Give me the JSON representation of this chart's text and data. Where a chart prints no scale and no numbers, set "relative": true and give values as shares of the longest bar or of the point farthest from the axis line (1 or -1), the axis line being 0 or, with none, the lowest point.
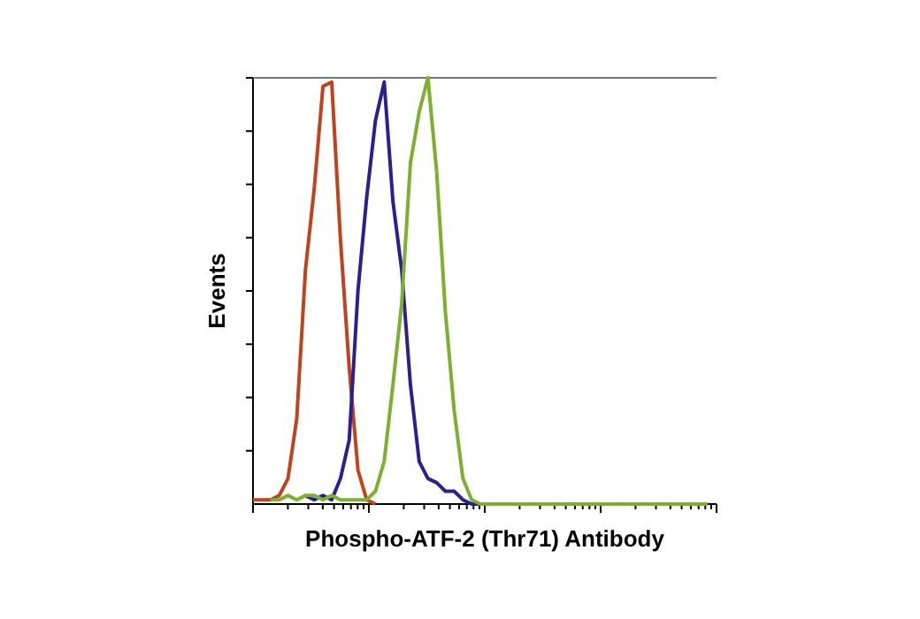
{
  "chart_data": {
    "type": "line",
    "relative": true,
    "xlabel": "Phospho-ATF-2 (Thr71) Antibody",
    "ylabel": "Events",
    "categories": [
      null,
      null,
      null,
      null,
      null,
      null,
      null,
      null,
      null,
      null,
      null,
      null,
      null,
      null,
      null,
      null,
      null,
      null,
      null,
      null,
      null,
      null,
      null,
      null,
      null,
      null,
      null,
      null,
      null,
      null,
      null,
      null,
      null,
      null,
      null,
      null,
      null,
      null,
      null,
      null,
      null,
      null,
      null,
      null,
      null,
      null,
      null,
      null,
      null,
      null,
      null,
      null,
      null
    ],
    "series": [
      {
        "color": "#c0431c",
        "values": [
          0.01,
          0.01,
          0.01,
          0.02,
          0.06,
          0.2,
          0.55,
          0.74,
          0.98,
          0.99,
          0.62,
          0.32,
          0.08,
          0.01,
          0,
          null,
          null,
          null,
          null,
          null,
          null,
          null,
          null,
          null,
          null,
          null,
          null,
          null,
          null,
          null,
          null,
          null,
          null,
          null,
          null,
          null,
          null,
          null,
          null,
          null,
          null,
          null,
          null,
          null,
          null,
          null,
          null,
          null,
          null,
          null,
          null,
          null,
          null
        ]
      },
      {
        "color": "#2b2090",
        "values": [
          null,
          null,
          null,
          null,
          null,
          null,
          0.02,
          0.01,
          0.02,
          0.01,
          0.06,
          0.15,
          0.5,
          0.72,
          0.9,
          0.99,
          0.71,
          0.55,
          0.28,
          0.1,
          0.06,
          0.05,
          0.03,
          0.03,
          0.01,
          0,
          0,
          null,
          null,
          null,
          null,
          null,
          null,
          null,
          null,
          null,
          null,
          null,
          null,
          null,
          null,
          null,
          null,
          null,
          null,
          null,
          null,
          null,
          null,
          null,
          null,
          null,
          null
        ]
      },
      {
        "color": "#7cb02e",
        "values": [
          null,
          null,
          0.01,
          0.01,
          0.02,
          0.01,
          0.02,
          0.02,
          0.01,
          0.02,
          0.01,
          0.01,
          0.01,
          0.01,
          0.03,
          0.1,
          0.28,
          0.47,
          0.8,
          0.92,
          1.0,
          0.78,
          0.45,
          0.22,
          0.06,
          0.01,
          0,
          0,
          0,
          0,
          0,
          0,
          0,
          0,
          0,
          0,
          0,
          0,
          0,
          0,
          0,
          0,
          0,
          0,
          0,
          0,
          0,
          0,
          0,
          0,
          0,
          0,
          0
        ]
      }
    ]
  }
}
